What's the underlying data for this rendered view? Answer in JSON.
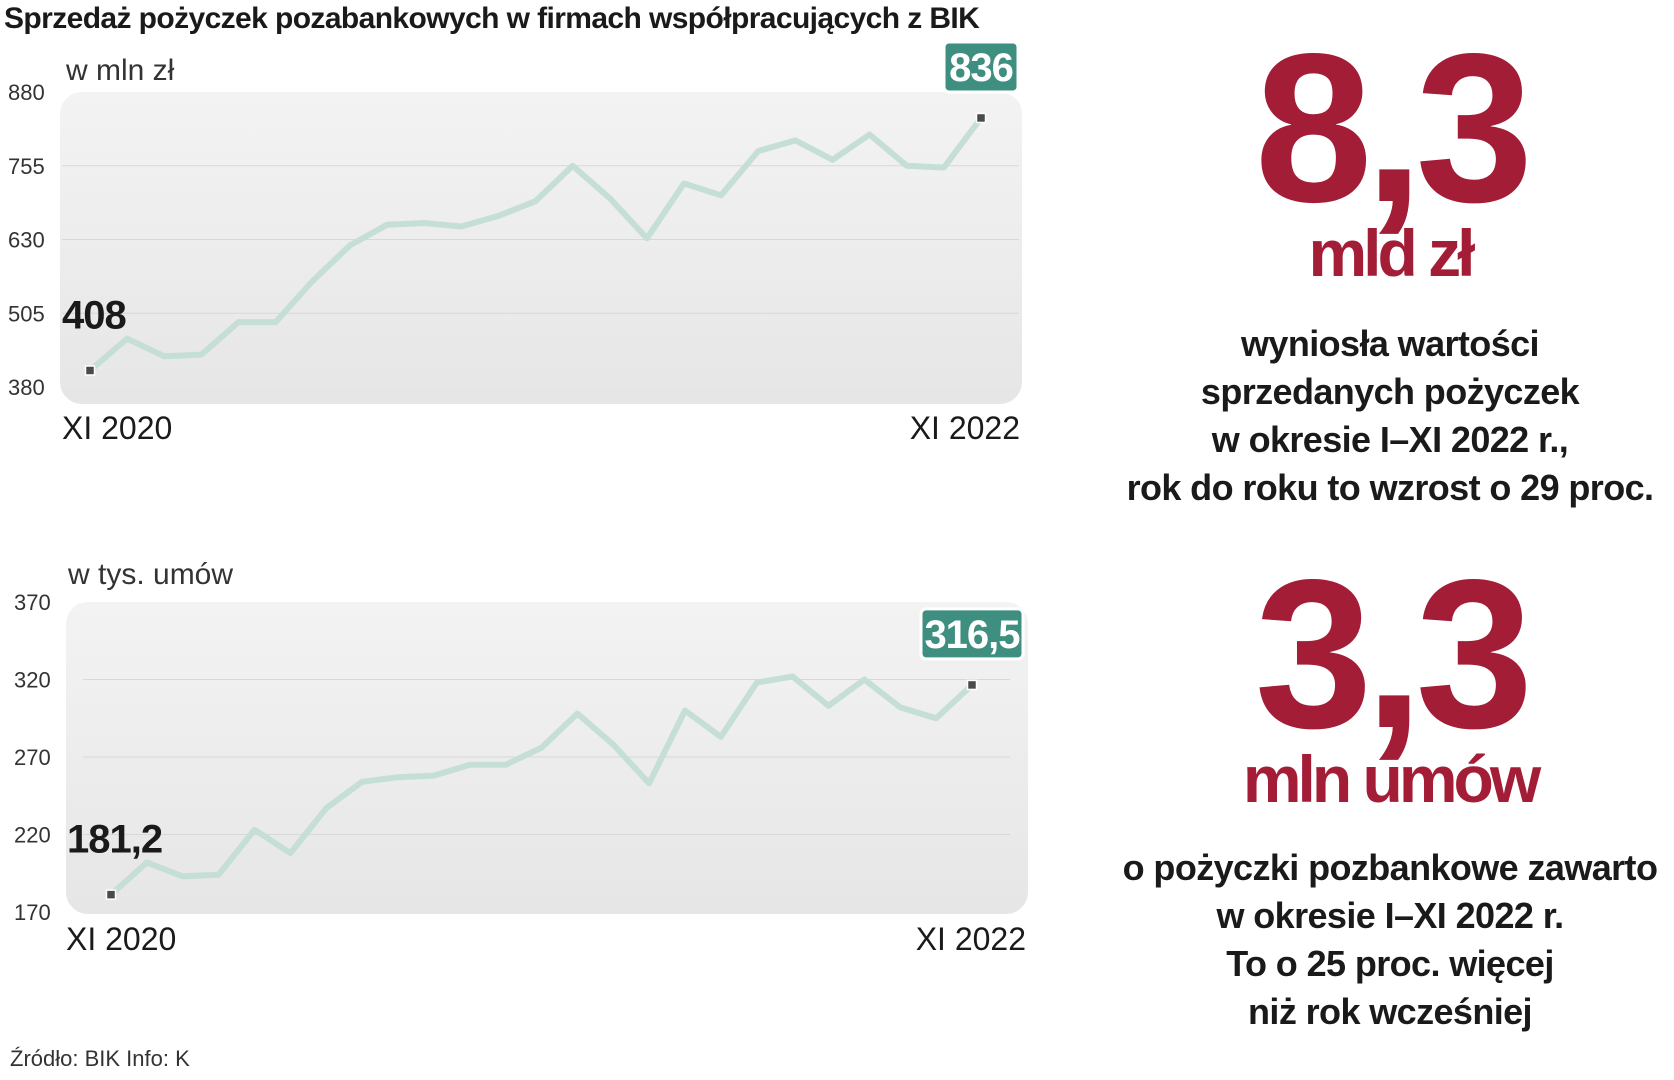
{
  "title": "Sprzedaż pożyczek pozabankowych w firmach współpracujących z BIK",
  "source": "Źródło: BIK  Info: K",
  "colors": {
    "line": "#c5dfd6",
    "accent_red": "#a31d37",
    "badge": "#3e8f7f",
    "panel": "#ececec"
  },
  "chart_data": [
    {
      "type": "line",
      "unit_label": "w mln zł",
      "ylim": [
        380,
        880
      ],
      "yticks": [
        "880",
        "755",
        "630",
        "505",
        "380"
      ],
      "x_start_label": "XI 2020",
      "x_end_label": "XI 2022",
      "grid": true,
      "values": [
        408,
        462,
        432,
        435,
        490,
        490,
        560,
        620,
        655,
        658,
        652,
        670,
        695,
        755,
        700,
        632,
        725,
        705,
        780,
        798,
        765,
        808,
        755,
        752,
        836
      ],
      "start_label": "408",
      "end_label": "836"
    },
    {
      "type": "line",
      "unit_label": "w tys. umów",
      "ylim": [
        170,
        370
      ],
      "yticks": [
        "370",
        "320",
        "270",
        "220",
        "170"
      ],
      "x_start_label": "XI 2020",
      "x_end_label": "XI 2022",
      "grid": true,
      "values": [
        181.2,
        202,
        193,
        194,
        223,
        208,
        237,
        254,
        257,
        258,
        265,
        265,
        276,
        298,
        278,
        253,
        300,
        283,
        318,
        322,
        303,
        320,
        302,
        295,
        316.5
      ],
      "start_label": "181,2",
      "end_label": "316,5"
    }
  ],
  "stats": [
    {
      "value": "8,3",
      "unit": "mld zł",
      "lines": [
        "wyniosła wartości",
        "sprzedanych pożyczek",
        "w okresie I–XI 2022 r.,",
        "rok do roku to wzrost o 29 proc."
      ]
    },
    {
      "value": "3,3",
      "unit": "mln umów",
      "lines": [
        "o pożyczki pozbankowe zawarto",
        "w okresie I–XI 2022 r.",
        "To o 25 proc. więcej",
        "niż rok wcześniej"
      ]
    }
  ]
}
